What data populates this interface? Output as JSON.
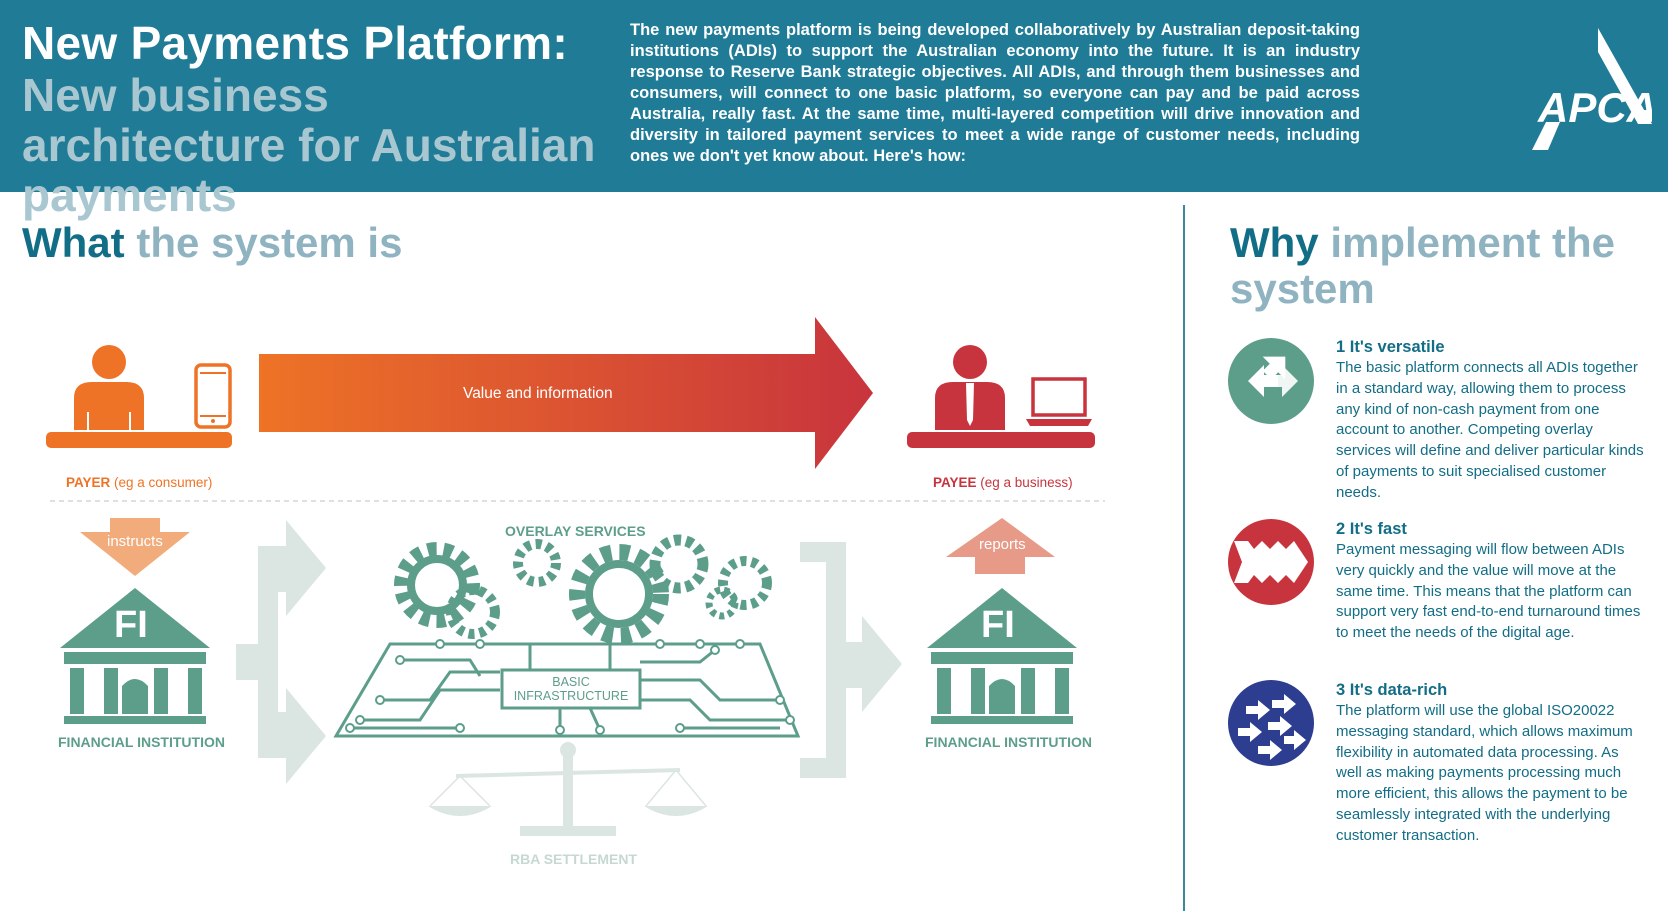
{
  "header": {
    "title_main": "New Payments Platform:",
    "title_sub": "New business architecture for Australian payments",
    "intro": "The new payments platform is being developed collaboratively by Australian deposit-taking institutions (ADIs) to support the Australian economy into the future. It is an industry response to Reserve Bank strategic objectives. All ADIs, and through them businesses and consumers, will connect to one basic platform, so everyone can pay and be paid across Australia, really fast. At the same time, multi-layered competition will drive innovation and diversity in tailored payment services to meet a wide range of customer needs, including ones we don't yet know about. Here's how:",
    "logo_text": "APCA"
  },
  "what": {
    "title_dark": "What",
    "title_light": "the system is"
  },
  "why": {
    "title_dark": "Why",
    "title_light": "implement the system",
    "items": [
      {
        "heading": "1 It's versatile",
        "body": "The basic platform connects all ADIs together in a standard way, allowing them to process any kind of non-cash payment from one account to another. Competing overlay services will define and deliver particular kinds of payments to suit specialised customer needs.",
        "icon": "versatile-arrows-icon",
        "color": "#5d9e8b"
      },
      {
        "heading": "2 It's fast",
        "body": "Payment messaging will flow between ADIs very quickly and the value will move at the same time. This means that the platform can support very fast end-to-end turnaround times to meet the needs of the digital age.",
        "icon": "fast-chevrons-icon",
        "color": "#c8343d"
      },
      {
        "heading": "3 It's data-rich",
        "body": "The platform will use the global ISO20022 messaging standard, which allows maximum flexibility in automated data processing. As well as making payments processing much more efficient, this allows the payment to be seamlessly integrated with the underlying customer transaction.",
        "icon": "data-rich-arrows-icon",
        "color": "#2d3d8f"
      }
    ]
  },
  "diagram": {
    "value_arrow_label": "Value and information",
    "payer_bold": "PAYER",
    "payer_rest": " (eg a consumer)",
    "payee_bold": "PAYEE",
    "payee_rest": " (eg a business)",
    "instructs": "instructs",
    "reports": "reports",
    "fi": "FI",
    "fi_left_label": "FINANCIAL INSTITUTION",
    "fi_right_label": "FINANCIAL INSTITUTION",
    "overlay_services": "OVERLAY SERVICES",
    "basic_infrastructure": "BASIC INFRASTRUCTURE",
    "rba_settlement": "RBA SETTLEMENT",
    "colors": {
      "orange": "#ee7326",
      "red": "#c8343d",
      "teal": "#5d9e8b",
      "pale_teal": "#dbe6e2",
      "salmon": "#e79a87",
      "header_blue": "#1f7b96"
    }
  }
}
